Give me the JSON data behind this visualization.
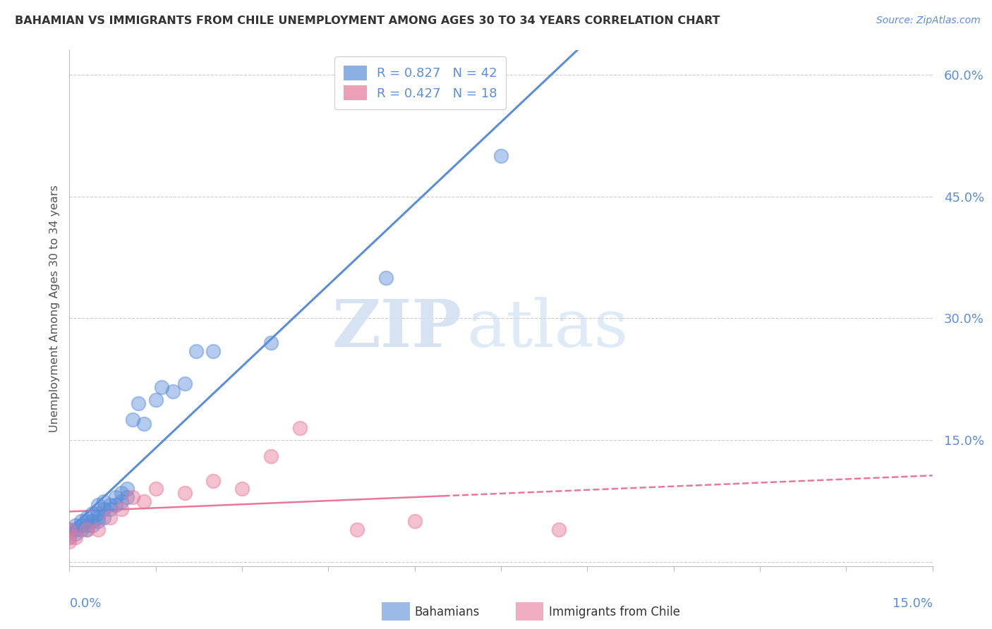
{
  "title": "BAHAMIAN VS IMMIGRANTS FROM CHILE UNEMPLOYMENT AMONG AGES 30 TO 34 YEARS CORRELATION CHART",
  "source": "Source: ZipAtlas.com",
  "ylabel": "Unemployment Among Ages 30 to 34 years",
  "y_ticks": [
    0.0,
    0.15,
    0.3,
    0.45,
    0.6
  ],
  "y_tick_labels": [
    "",
    "15.0%",
    "30.0%",
    "45.0%",
    "60.0%"
  ],
  "x_lim": [
    0.0,
    0.15
  ],
  "y_lim": [
    -0.005,
    0.63
  ],
  "bahamian_color": "#5b8dd9",
  "chile_color": "#e8779a",
  "legend_label_1": "R = 0.827   N = 42",
  "legend_label_2": "R = 0.427   N = 18",
  "bahamian_x": [
    0.0,
    0.0,
    0.001,
    0.001,
    0.001,
    0.002,
    0.002,
    0.002,
    0.003,
    0.003,
    0.003,
    0.003,
    0.004,
    0.004,
    0.004,
    0.005,
    0.005,
    0.005,
    0.005,
    0.006,
    0.006,
    0.006,
    0.007,
    0.007,
    0.008,
    0.008,
    0.009,
    0.009,
    0.01,
    0.01,
    0.011,
    0.012,
    0.013,
    0.015,
    0.016,
    0.018,
    0.02,
    0.022,
    0.025,
    0.035,
    0.055,
    0.075
  ],
  "bahamian_y": [
    0.03,
    0.04,
    0.035,
    0.04,
    0.045,
    0.04,
    0.045,
    0.05,
    0.04,
    0.045,
    0.05,
    0.055,
    0.045,
    0.05,
    0.06,
    0.05,
    0.055,
    0.06,
    0.07,
    0.055,
    0.065,
    0.075,
    0.065,
    0.07,
    0.07,
    0.08,
    0.075,
    0.085,
    0.08,
    0.09,
    0.175,
    0.195,
    0.17,
    0.2,
    0.215,
    0.21,
    0.22,
    0.26,
    0.26,
    0.27,
    0.35,
    0.5
  ],
  "chile_x": [
    0.0,
    0.0,
    0.001,
    0.003,
    0.005,
    0.007,
    0.009,
    0.011,
    0.013,
    0.015,
    0.02,
    0.025,
    0.03,
    0.035,
    0.04,
    0.05,
    0.06,
    0.085
  ],
  "chile_y": [
    0.025,
    0.04,
    0.03,
    0.04,
    0.04,
    0.055,
    0.065,
    0.08,
    0.075,
    0.09,
    0.085,
    0.1,
    0.09,
    0.13,
    0.165,
    0.04,
    0.05,
    0.04
  ],
  "watermark_zip": "ZIP",
  "watermark_atlas": "atlas",
  "background_color": "#ffffff",
  "grid_color": "#cccccc",
  "axis_color": "#bbbbbb",
  "text_color": "#5b8dd9",
  "title_color": "#333333",
  "source_color": "#5b8dd9"
}
